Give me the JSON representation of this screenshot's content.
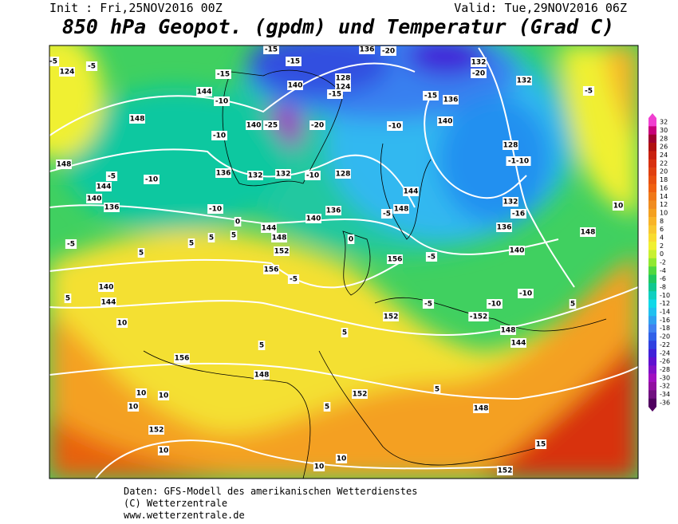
{
  "header": {
    "init": "Init : Fri,25NOV2016 00Z",
    "valid": "Valid: Tue,29NOV2016 06Z",
    "title": "850 hPa Geopot. (gpdm) und Temperatur (Grad C)"
  },
  "colorbar": {
    "labels": [
      32,
      30,
      28,
      26,
      24,
      22,
      20,
      18,
      16,
      14,
      12,
      10,
      8,
      6,
      4,
      2,
      0,
      -2,
      -4,
      -6,
      -8,
      -10,
      -12,
      -14,
      -16,
      -18,
      -20,
      -22,
      -24,
      -26,
      -28,
      -30,
      -32,
      -34,
      -36
    ],
    "colors": [
      "#f040d0",
      "#c8007a",
      "#a00030",
      "#b01010",
      "#c82010",
      "#d83010",
      "#e04010",
      "#e85010",
      "#f06010",
      "#f07818",
      "#f08c20",
      "#f4a020",
      "#f8b428",
      "#f8c830",
      "#f8dc30",
      "#f0f030",
      "#c8f030",
      "#90e830",
      "#50d840",
      "#20c860",
      "#10c890",
      "#10d0c0",
      "#10d8e8",
      "#20c0f0",
      "#30a0f0",
      "#4080f0",
      "#3060e8",
      "#3040e0",
      "#4020d8",
      "#6010d0",
      "#8010c8",
      "#a010c0",
      "#9010a0",
      "#701080",
      "#500060"
    ]
  },
  "map_labels": [
    "-5",
    "124",
    "-5",
    "-15",
    "-15",
    "136",
    "-20",
    "132",
    "-20",
    "144",
    "-10",
    "-15",
    "132",
    "-5",
    "148",
    "140",
    "-25",
    "-20",
    "140",
    "128",
    "124",
    "-15",
    "-10",
    "-15",
    "136",
    "140",
    "-10",
    "128",
    "-1-10",
    "148",
    "-5",
    "-10",
    "144",
    "140",
    "136",
    "136",
    "132",
    "132",
    "-10",
    "128",
    "144",
    "-5",
    "148",
    "132",
    "-16",
    "136",
    "10",
    "-10",
    "0",
    "140",
    "136",
    "144",
    "148",
    "152",
    "156",
    "-5",
    "5",
    "5",
    "5",
    "-5",
    "5",
    "0",
    "156",
    "-5",
    "140",
    "148",
    "140",
    "144",
    "5",
    "-10",
    "-10",
    "-5",
    "-152",
    "5",
    "10",
    "152",
    "5",
    "148",
    "144",
    "156",
    "5",
    "148",
    "10",
    "10",
    "10",
    "152",
    "5",
    "5",
    "148",
    "152",
    "10",
    "15",
    "10",
    "10",
    "152"
  ],
  "footer": [
    "Daten: GFS-Modell des amerikanischen Wetterdienstes",
    "(C) Wetterzentrale",
    "www.wetterzentrale.de"
  ]
}
